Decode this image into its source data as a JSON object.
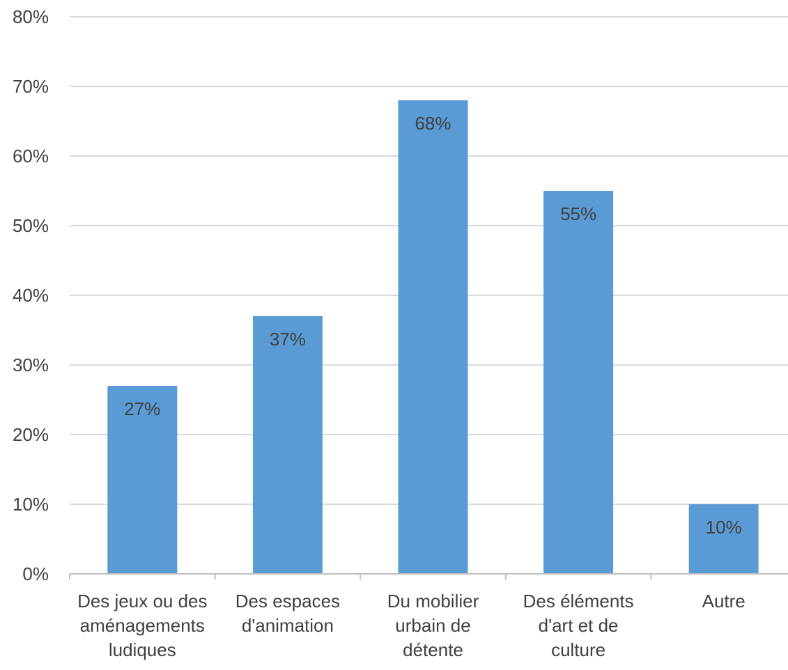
{
  "chart_data": {
    "type": "bar",
    "title": "",
    "xlabel": "",
    "ylabel": "",
    "categories": [
      [
        "Des jeux ou des",
        "aménagements",
        "ludiques"
      ],
      [
        "Des espaces",
        "d'animation"
      ],
      [
        "Du mobilier",
        "urbain de",
        "détente"
      ],
      [
        "Des éléments",
        "d'art et de",
        "culture"
      ],
      [
        "Autre"
      ]
    ],
    "values": [
      27,
      37,
      68,
      55,
      10
    ],
    "data_labels": [
      "27%",
      "37%",
      "68%",
      "55%",
      "10%"
    ],
    "ylim": [
      0,
      80
    ],
    "yticks": [
      0,
      10,
      20,
      30,
      40,
      50,
      60,
      70,
      80
    ],
    "ytick_labels": [
      "0%",
      "10%",
      "20%",
      "30%",
      "40%",
      "50%",
      "60%",
      "70%",
      "80%"
    ],
    "grid": true,
    "legend": "none",
    "colors": {
      "bar": "#5b9bd5",
      "grid": "#d9d9d9",
      "axis": "#bfbfbf",
      "text": "#404040"
    }
  }
}
